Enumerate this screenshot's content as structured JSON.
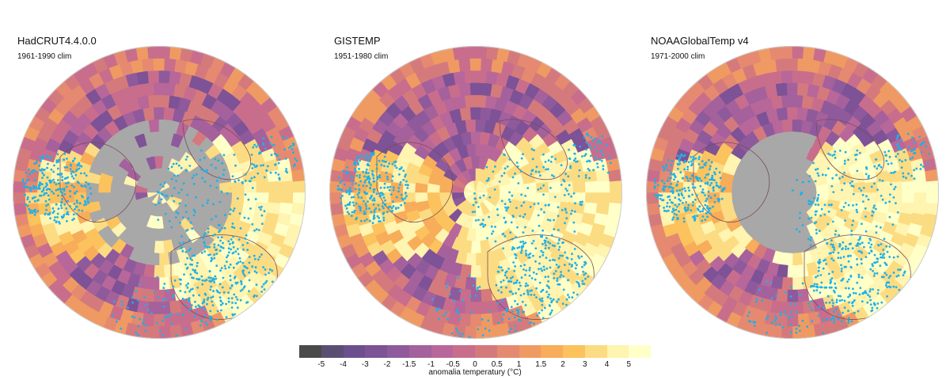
{
  "panels": [
    {
      "title": "HadCRUT4.4.0.0",
      "subtitle": "1961-1990 clim",
      "coverage": "sparse"
    },
    {
      "title": "GISTEMP",
      "subtitle": "1951-1980 clim",
      "coverage": "full"
    },
    {
      "title": "NOAAGlobalTemp v4",
      "subtitle": "1971-2000 clim",
      "coverage": "partial"
    }
  ],
  "legend": {
    "title": "anomalia temperatury (°C)",
    "ticks": [
      "-5",
      "-4",
      "-3",
      "-2",
      "-1.5",
      "-1",
      "-0.5",
      "0",
      "0.5",
      "1",
      "1.5",
      "2",
      "3",
      "4",
      "5"
    ],
    "colors": [
      "#4a4a4a",
      "#5b4e73",
      "#6c4f8e",
      "#7d5296",
      "#8e5a9c",
      "#a4619c",
      "#b8679a",
      "#c86e8c",
      "#d57a7c",
      "#e58a70",
      "#f09a63",
      "#f7ad5a",
      "#fbc25e",
      "#fcdc82",
      "#fff4b0",
      "#ffffc8"
    ],
    "missing_color": "#a8a8a8",
    "station_color": "#1fb0e8"
  }
}
